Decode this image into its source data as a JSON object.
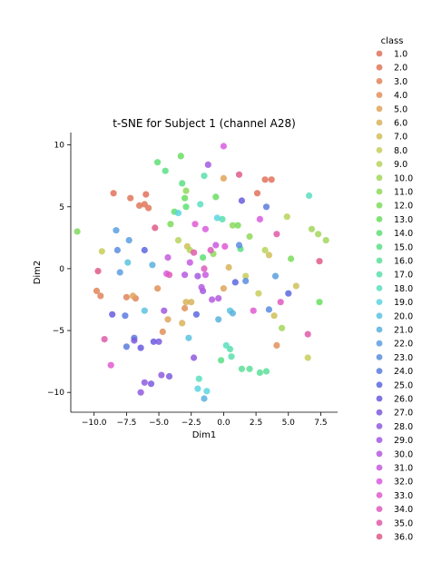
{
  "chart_data": {
    "type": "scatter",
    "title": "t-SNE for Subject 1 (channel A28)",
    "xlabel": "Dim1",
    "ylabel": "Dim2",
    "xlim": [
      -11.8,
      8.8
    ],
    "ylim": [
      -11.6,
      11.0
    ],
    "xticks": [
      -10,
      -7.5,
      -5,
      -2.5,
      0,
      2.5,
      5,
      7.5
    ],
    "xtick_labels": [
      "−10.0",
      "−7.5",
      "−5.0",
      "−2.5",
      "0.0",
      "2.5",
      "5.0",
      "7.5"
    ],
    "yticks": [
      -10,
      -5,
      0,
      5,
      10
    ],
    "ytick_labels": [
      "−10",
      "−5",
      "0",
      "5",
      "10"
    ],
    "grid": false,
    "legend": {
      "title": "class",
      "placement": "right"
    },
    "series": [
      {
        "name": "1.0",
        "color": "#e1725a",
        "points": [
          [
            -8.5,
            6.1
          ],
          [
            -6.0,
            6.0
          ],
          [
            3.2,
            7.2
          ],
          [
            3.7,
            7.2
          ],
          [
            2.6,
            6.1
          ]
        ]
      },
      {
        "name": "2.0",
        "color": "#e1775a",
        "points": [
          [
            -7.2,
            5.7
          ],
          [
            -6.1,
            5.2
          ],
          [
            -6.5,
            5.1
          ],
          [
            -5.8,
            4.9
          ]
        ]
      },
      {
        "name": "3.0",
        "color": "#e1845a",
        "points": [
          [
            -9.8,
            -1.8
          ],
          [
            -9.5,
            -2.2
          ],
          [
            -7.5,
            -2.3
          ],
          [
            -6.8,
            -2.4
          ]
        ]
      },
      {
        "name": "4.0",
        "color": "#e1905a",
        "points": [
          [
            -5.1,
            -1.6
          ],
          [
            -4.7,
            -5.1
          ],
          [
            -3.0,
            -3.2
          ],
          [
            4.1,
            -6.2
          ]
        ]
      },
      {
        "name": "5.0",
        "color": "#dfa55a",
        "points": [
          [
            -7.0,
            -2.2
          ],
          [
            -4.3,
            -4.1
          ],
          [
            0.0,
            7.3
          ],
          [
            0.0,
            -1.6
          ]
        ]
      },
      {
        "name": "6.0",
        "color": "#d7b35a",
        "points": [
          [
            -2.9,
            -2.7
          ],
          [
            -2.5,
            -2.7
          ],
          [
            -3.2,
            -4.4
          ],
          [
            0.4,
            0.1
          ]
        ]
      },
      {
        "name": "7.0",
        "color": "#d0c05a",
        "points": [
          [
            -2.8,
            1.8
          ],
          [
            3.5,
            1.1
          ],
          [
            3.9,
            -3.8
          ],
          [
            5.6,
            -1.4
          ]
        ]
      },
      {
        "name": "8.0",
        "color": "#c8cd5a",
        "points": [
          [
            -9.4,
            1.4
          ],
          [
            1.7,
            -0.6
          ],
          [
            2.7,
            -2.0
          ],
          [
            6.5,
            -7.2
          ]
        ]
      },
      {
        "name": "9.0",
        "color": "#b6d35a",
        "points": [
          [
            -3.5,
            2.3
          ],
          [
            -2.6,
            1.5
          ],
          [
            3.2,
            1.5
          ],
          [
            4.9,
            4.2
          ]
        ]
      },
      {
        "name": "10.0",
        "color": "#a3d65a",
        "points": [
          [
            4.5,
            -4.8
          ],
          [
            6.8,
            3.2
          ],
          [
            7.3,
            2.8
          ],
          [
            7.9,
            2.3
          ]
        ]
      },
      {
        "name": "11.0",
        "color": "#8fd95a",
        "points": [
          [
            -2.9,
            6.3
          ],
          [
            -0.8,
            1.2
          ],
          [
            0.7,
            3.5
          ],
          [
            2.0,
            2.6
          ]
        ]
      },
      {
        "name": "12.0",
        "color": "#7bdc5a",
        "points": [
          [
            -11.3,
            3.0
          ],
          [
            -4.1,
            3.6
          ],
          [
            1.1,
            3.5
          ],
          [
            5.2,
            0.8
          ]
        ]
      },
      {
        "name": "13.0",
        "color": "#68de60",
        "points": [
          [
            -3.3,
            9.1
          ],
          [
            -3.0,
            5.7
          ],
          [
            -0.6,
            5.8
          ],
          [
            7.4,
            -2.7
          ]
        ]
      },
      {
        "name": "14.0",
        "color": "#5edf72",
        "points": [
          [
            -5.1,
            8.6
          ],
          [
            -3.8,
            4.6
          ],
          [
            -2.9,
            5.0
          ],
          [
            -1.6,
            0.9
          ]
        ]
      },
      {
        "name": "15.0",
        "color": "#5adf85",
        "points": [
          [
            -4.5,
            7.9
          ],
          [
            -3.2,
            6.9
          ],
          [
            1.3,
            1.6
          ],
          [
            -0.2,
            -7.4
          ]
        ]
      },
      {
        "name": "16.0",
        "color": "#5adf98",
        "points": [
          [
            2.0,
            -8.1
          ],
          [
            2.8,
            -8.4
          ],
          [
            3.3,
            -8.3
          ],
          [
            1.4,
            -8.1
          ]
        ]
      },
      {
        "name": "17.0",
        "color": "#5adfac",
        "points": [
          [
            -1.5,
            7.5
          ],
          [
            -0.1,
            4.0
          ],
          [
            0.5,
            -6.5
          ],
          [
            0.6,
            -7.1
          ]
        ]
      },
      {
        "name": "18.0",
        "color": "#5adfc0",
        "points": [
          [
            -1.8,
            5.2
          ],
          [
            6.6,
            5.9
          ],
          [
            0.2,
            -6.2
          ],
          [
            -1.9,
            -8.9
          ]
        ]
      },
      {
        "name": "19.0",
        "color": "#5ad5df",
        "points": [
          [
            -3.5,
            4.5
          ],
          [
            -0.5,
            4.1
          ],
          [
            -1.3,
            -9.9
          ],
          [
            -2.0,
            -9.7
          ]
        ]
      },
      {
        "name": "20.0",
        "color": "#5ac3df",
        "points": [
          [
            -7.4,
            0.5
          ],
          [
            -6.1,
            -3.4
          ],
          [
            -2.7,
            -5.6
          ],
          [
            0.5,
            -3.4
          ]
        ]
      },
      {
        "name": "21.0",
        "color": "#5ab1df",
        "points": [
          [
            -5.5,
            0.3
          ],
          [
            -0.4,
            -4.1
          ],
          [
            0.7,
            -3.6
          ],
          [
            -1.5,
            -10.5
          ]
        ]
      },
      {
        "name": "22.0",
        "color": "#5a9fdf",
        "points": [
          [
            -8.3,
            3.1
          ],
          [
            -7.3,
            2.3
          ],
          [
            -8.0,
            -0.3
          ],
          [
            4.0,
            -0.6
          ]
        ]
      },
      {
        "name": "23.0",
        "color": "#5a8ddf",
        "points": [
          [
            -8.2,
            1.5
          ],
          [
            1.2,
            1.9
          ],
          [
            1.7,
            -1.0
          ],
          [
            3.5,
            -3.3
          ]
        ]
      },
      {
        "name": "24.0",
        "color": "#5a7bdf",
        "points": [
          [
            -7.6,
            -3.8
          ],
          [
            -6.9,
            -5.6
          ],
          [
            -7.5,
            -6.3
          ],
          [
            3.3,
            5.0
          ]
        ]
      },
      {
        "name": "25.0",
        "color": "#5a69df",
        "points": [
          [
            -6.1,
            1.5
          ],
          [
            -2.1,
            -3.7
          ],
          [
            0.9,
            -1.1
          ],
          [
            5.0,
            -2.0
          ]
        ]
      },
      {
        "name": "26.0",
        "color": "#6a5adf",
        "points": [
          [
            -8.6,
            -3.7
          ],
          [
            -6.4,
            -6.4
          ],
          [
            -5.4,
            -5.9
          ],
          [
            1.4,
            5.5
          ]
        ]
      },
      {
        "name": "27.0",
        "color": "#7c5adf",
        "points": [
          [
            -5.0,
            -5.9
          ],
          [
            -6.9,
            -5.8
          ],
          [
            -4.2,
            -8.7
          ],
          [
            -5.6,
            -9.3
          ]
        ]
      },
      {
        "name": "28.0",
        "color": "#8f5adf",
        "points": [
          [
            -6.1,
            -9.2
          ],
          [
            -6.4,
            -10.0
          ],
          [
            -4.8,
            -8.6
          ],
          [
            -2.3,
            -7.2
          ]
        ]
      },
      {
        "name": "29.0",
        "color": "#a15adf",
        "points": [
          [
            -1.2,
            8.4
          ],
          [
            -4.6,
            -3.4
          ],
          [
            -2.0,
            -0.6
          ],
          [
            -1.6,
            -1.8
          ]
        ]
      },
      {
        "name": "30.0",
        "color": "#b45adf",
        "points": [
          [
            -3.0,
            -0.5
          ],
          [
            -1.7,
            -1.5
          ],
          [
            -0.4,
            -2.4
          ],
          [
            -0.9,
            -2.5
          ]
        ]
      },
      {
        "name": "31.0",
        "color": "#c75adf",
        "points": [
          [
            -4.3,
            0.9
          ],
          [
            -2.6,
            0.5
          ],
          [
            -1.4,
            -0.5
          ],
          [
            -0.6,
            1.9
          ]
        ]
      },
      {
        "name": "32.0",
        "color": "#d95adf",
        "points": [
          [
            -4.4,
            -0.4
          ],
          [
            -1.4,
            3.2
          ],
          [
            0.0,
            9.9
          ],
          [
            2.8,
            4.0
          ]
        ]
      },
      {
        "name": "33.0",
        "color": "#df5ad0",
        "points": [
          [
            -8.7,
            -7.8
          ],
          [
            -2.2,
            3.6
          ],
          [
            0.1,
            1.8
          ],
          [
            2.3,
            -3.4
          ]
        ]
      },
      {
        "name": "34.0",
        "color": "#df5abd",
        "points": [
          [
            -4.2,
            -0.5
          ],
          [
            -1.5,
            0.0
          ],
          [
            -1.0,
            1.5
          ],
          [
            4.4,
            -2.7
          ]
        ]
      },
      {
        "name": "35.0",
        "color": "#df5aa9",
        "points": [
          [
            -9.2,
            -5.7
          ],
          [
            -2.3,
            1.3
          ],
          [
            4.1,
            2.8
          ],
          [
            6.5,
            -5.3
          ]
        ]
      },
      {
        "name": "36.0",
        "color": "#df5a8a",
        "points": [
          [
            -9.7,
            -0.2
          ],
          [
            -5.3,
            3.3
          ],
          [
            1.2,
            7.6
          ],
          [
            7.4,
            0.6
          ]
        ]
      }
    ]
  }
}
